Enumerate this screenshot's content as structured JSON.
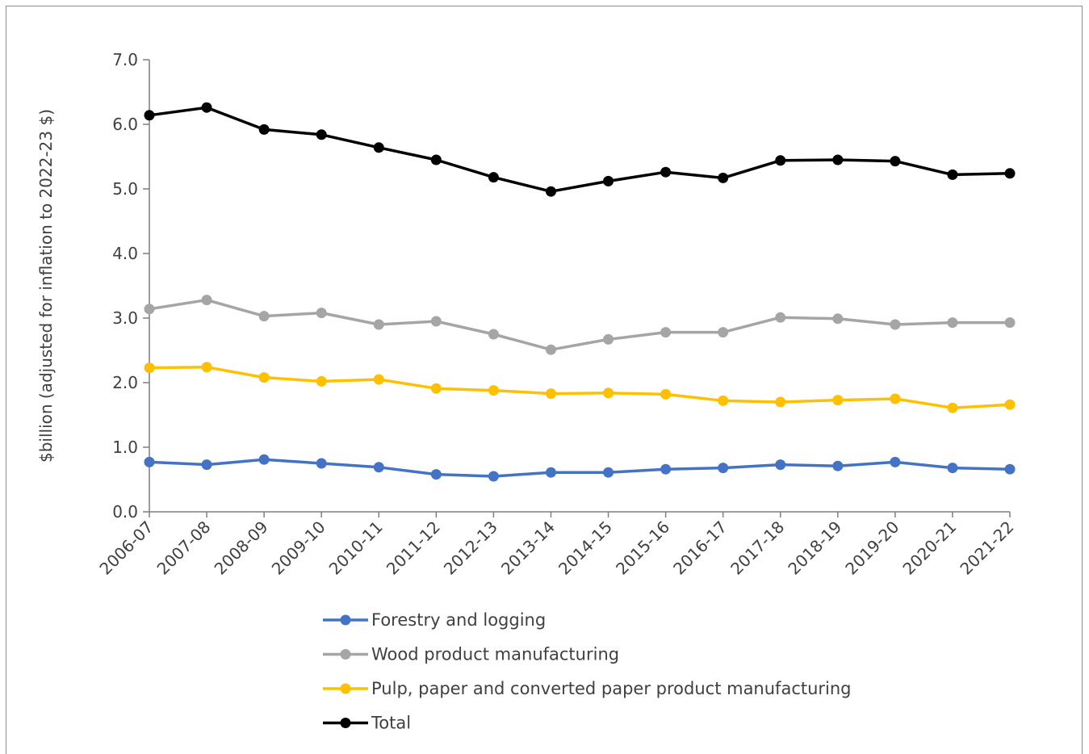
{
  "chart_data": {
    "type": "line",
    "title": "",
    "xlabel": "",
    "ylabel": "$billion (adjusted for inflation to 2022-23 $)",
    "ylim": [
      0,
      7
    ],
    "ytick_step": 1,
    "ytick_labels": [
      "0.0",
      "1.0",
      "2.0",
      "3.0",
      "4.0",
      "5.0",
      "6.0",
      "7.0"
    ],
    "grid": false,
    "legend_position": "bottom",
    "categories": [
      "2006-07",
      "2007-08",
      "2008-09",
      "2009-10",
      "2010-11",
      "2011-12",
      "2012-13",
      "2013-14",
      "2014-15",
      "2015-16",
      "2016-17",
      "2017-18",
      "2018-19",
      "2019-20",
      "2020-21",
      "2021-22"
    ],
    "series": [
      {
        "name": "Forestry and logging",
        "color": "#4472c4",
        "values": [
          0.77,
          0.73,
          0.81,
          0.75,
          0.69,
          0.58,
          0.55,
          0.61,
          0.61,
          0.66,
          0.68,
          0.73,
          0.71,
          0.77,
          0.68,
          0.66
        ]
      },
      {
        "name": "Wood product manufacturing",
        "color": "#a5a5a5",
        "values": [
          3.14,
          3.28,
          3.03,
          3.08,
          2.9,
          2.95,
          2.75,
          2.51,
          2.67,
          2.78,
          2.78,
          3.01,
          2.99,
          2.9,
          2.93,
          2.93
        ]
      },
      {
        "name": "Pulp, paper and converted paper product manufacturing",
        "color": "#ffc000",
        "values": [
          2.23,
          2.24,
          2.08,
          2.02,
          2.05,
          1.91,
          1.88,
          1.83,
          1.84,
          1.82,
          1.72,
          1.7,
          1.73,
          1.75,
          1.61,
          1.66
        ]
      },
      {
        "name": "Total",
        "color": "#000000",
        "values": [
          6.14,
          6.26,
          5.92,
          5.84,
          5.64,
          5.45,
          5.18,
          4.96,
          5.12,
          5.26,
          5.17,
          5.44,
          5.45,
          5.43,
          5.22,
          5.24
        ]
      }
    ]
  }
}
